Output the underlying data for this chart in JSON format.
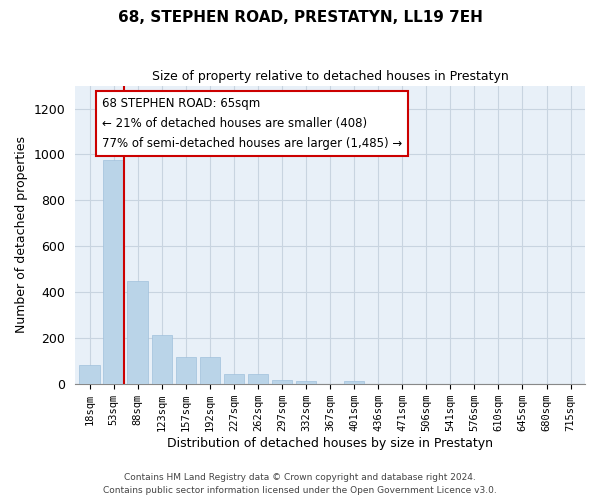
{
  "title": "68, STEPHEN ROAD, PRESTATYN, LL19 7EH",
  "subtitle": "Size of property relative to detached houses in Prestatyn",
  "xlabel": "Distribution of detached houses by size in Prestatyn",
  "ylabel": "Number of detached properties",
  "bar_labels": [
    "18sqm",
    "53sqm",
    "88sqm",
    "123sqm",
    "157sqm",
    "192sqm",
    "227sqm",
    "262sqm",
    "297sqm",
    "332sqm",
    "367sqm",
    "401sqm",
    "436sqm",
    "471sqm",
    "506sqm",
    "541sqm",
    "576sqm",
    "610sqm",
    "645sqm",
    "680sqm",
    "715sqm"
  ],
  "bar_values": [
    85,
    975,
    450,
    215,
    120,
    120,
    45,
    45,
    20,
    15,
    0,
    15,
    0,
    0,
    0,
    0,
    0,
    0,
    0,
    0,
    0
  ],
  "bar_color": "#bad4e8",
  "bar_edge_color": "#a0c0dc",
  "highlight_bar_index": 1,
  "highlight_line_color": "#cc0000",
  "ylim": [
    0,
    1300
  ],
  "yticks": [
    0,
    200,
    400,
    600,
    800,
    1000,
    1200
  ],
  "annotation_title": "68 STEPHEN ROAD: 65sqm",
  "annotation_line1": "← 21% of detached houses are smaller (408)",
  "annotation_line2": "77% of semi-detached houses are larger (1,485) →",
  "annotation_box_facecolor": "#ffffff",
  "annotation_box_edgecolor": "#cc0000",
  "footer_line1": "Contains HM Land Registry data © Crown copyright and database right 2024.",
  "footer_line2": "Contains public sector information licensed under the Open Government Licence v3.0.",
  "background_color": "#ffffff",
  "plot_bg_color": "#e8f0f8",
  "grid_color": "#c8d4e0"
}
